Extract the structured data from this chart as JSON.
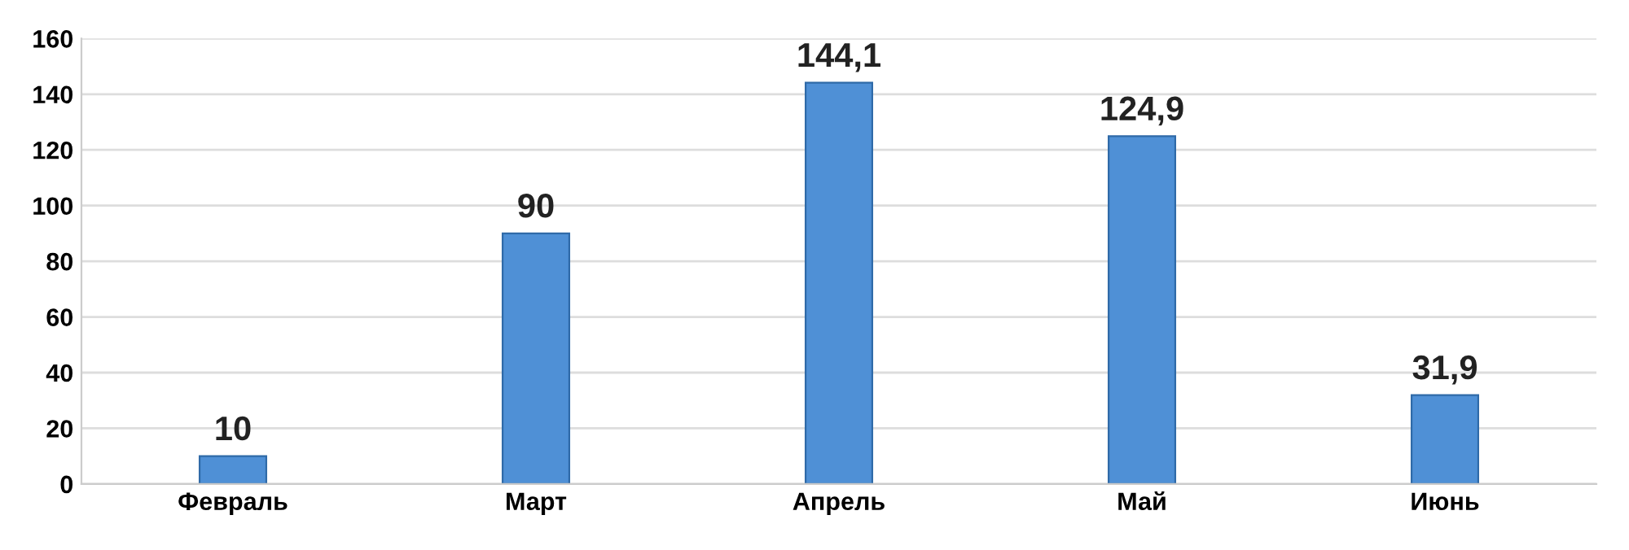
{
  "chart_data": {
    "type": "bar",
    "categories": [
      "Февраль",
      "Март",
      "Апрель",
      "Май",
      "Июнь"
    ],
    "values": [
      10,
      90,
      144.1,
      124.9,
      31.9
    ],
    "value_labels": [
      "10",
      "90",
      "144,1",
      "124,9",
      "31,9"
    ],
    "color": "#4f90d6",
    "ylim": [
      0,
      160
    ],
    "yticks": [
      0,
      20,
      40,
      60,
      80,
      100,
      120,
      140,
      160
    ],
    "grid": "y",
    "legend": false
  }
}
